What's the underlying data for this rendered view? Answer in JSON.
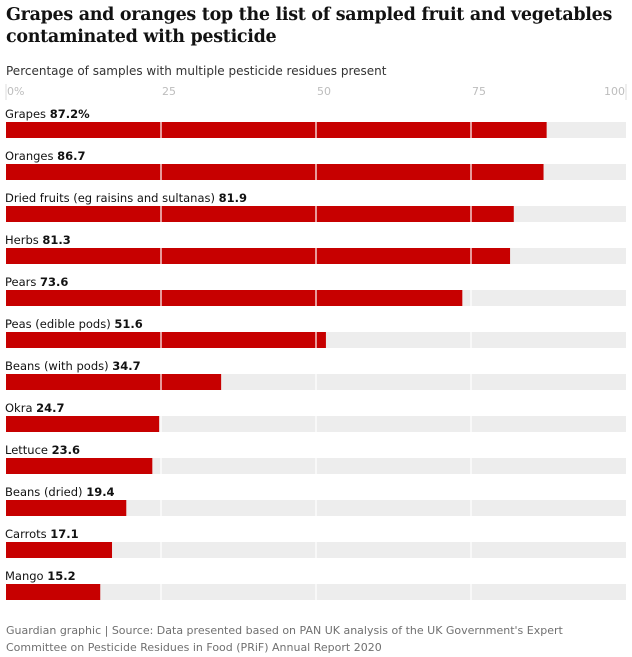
{
  "chart_data": {
    "type": "bar",
    "orientation": "horizontal",
    "title": "Grapes and oranges top the list of sampled fruit and vegetables contaminated with pesticide",
    "subtitle": "Percentage of samples with multiple pesticide residues present",
    "xlim": [
      0,
      100
    ],
    "ticks": [
      0,
      25,
      50,
      75,
      100
    ],
    "tick_labels": [
      "0%",
      "25",
      "50",
      "75",
      "100"
    ],
    "categories": [
      "Grapes",
      "Oranges",
      "Dried fruits (eg raisins and sultanas)",
      "Herbs",
      "Pears",
      "Peas (edible pods)",
      "Beans (with pods)",
      "Okra",
      "Lettuce",
      "Beans (dried)",
      "Carrots",
      "Mango"
    ],
    "values": [
      87.2,
      86.7,
      81.9,
      81.3,
      73.6,
      51.6,
      34.7,
      24.7,
      23.6,
      19.4,
      17.1,
      15.2
    ],
    "value_labels": [
      "87.2%",
      "86.7",
      "81.9",
      "81.3",
      "73.6",
      "51.6",
      "34.7",
      "24.7",
      "23.6",
      "19.4",
      "17.1",
      "15.2"
    ],
    "bar_color": "#c70000",
    "track_color": "#ededed",
    "source": "Guardian graphic | Source: Data presented based on PAN UK analysis of the UK Government's Expert Committee on Pesticide Residues in Food (PRiF) Annual Report 2020"
  }
}
